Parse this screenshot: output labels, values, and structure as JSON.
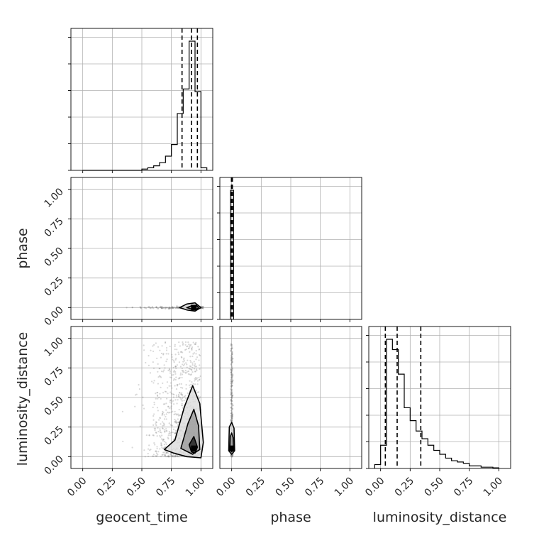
{
  "chart_data": {
    "type": "corner",
    "parameters": [
      "geocent_time",
      "phase",
      "luminosity_distance"
    ],
    "tick_labels": [
      "0.00",
      "0.25",
      "0.50",
      "0.75",
      "1.00"
    ],
    "ticks": [
      0,
      0.25,
      0.5,
      0.75,
      1.0
    ],
    "grid": true,
    "colors": {
      "line": "#000000",
      "grid": "#b0b0b0",
      "sample": "#7f7f7f",
      "fill_dark": "#1a1a1a",
      "fill_mid": "#9a9a9a",
      "fill_light": "#dcdcdc"
    },
    "diagonals": [
      {
        "parameter": "geocent_time",
        "xlim": [
          -0.1,
          1.1
        ],
        "bin_edges": [
          0.0,
          0.05,
          0.1,
          0.15,
          0.2,
          0.25,
          0.3,
          0.35,
          0.4,
          0.45,
          0.5,
          0.55,
          0.6,
          0.65,
          0.7,
          0.75,
          0.8,
          0.85,
          0.9,
          0.95,
          1.0,
          1.05
        ],
        "counts": [
          0,
          0,
          0,
          0,
          0,
          0,
          0,
          0,
          0,
          0,
          0.01,
          0.02,
          0.035,
          0.06,
          0.11,
          0.2,
          0.44,
          0.63,
          1.0,
          0.61,
          0.02
        ],
        "quantiles": [
          0.84,
          0.92,
          0.97
        ]
      },
      {
        "parameter": "phase",
        "xlim": [
          -0.1,
          1.1
        ],
        "bin_edges": [
          -0.01,
          0.003,
          0.016
        ],
        "counts": [
          1.0,
          1.0
        ],
        "quantiles": [
          -0.002,
          0.002,
          0.006
        ]
      },
      {
        "parameter": "luminosity_distance",
        "xlim": [
          -0.1,
          1.1
        ],
        "bin_edges": [
          -0.05,
          0.0,
          0.05,
          0.1,
          0.15,
          0.2,
          0.25,
          0.3,
          0.35,
          0.4,
          0.45,
          0.5,
          0.55,
          0.6,
          0.65,
          0.7,
          0.75,
          0.8,
          0.85,
          0.9,
          0.95,
          1.0
        ],
        "counts": [
          0.03,
          0.18,
          1.0,
          0.92,
          0.73,
          0.47,
          0.37,
          0.29,
          0.23,
          0.18,
          0.14,
          0.11,
          0.08,
          0.06,
          0.05,
          0.04,
          0.02,
          0.02,
          0.01,
          0.01,
          0.005
        ],
        "quantiles": [
          0.04,
          0.14,
          0.34
        ]
      }
    ],
    "pairs": [
      {
        "x": "geocent_time",
        "y": "phase",
        "xlim": [
          -0.1,
          1.1
        ],
        "ylim": [
          -0.1,
          1.1
        ],
        "samples": [
          [
            0.37,
            0.0
          ],
          [
            0.45,
            0.0
          ],
          [
            0.55,
            0.0
          ],
          [
            0.65,
            0.0
          ],
          [
            0.75,
            0.0
          ],
          [
            0.85,
            0.0
          ],
          [
            0.95,
            0.0
          ]
        ],
        "contours": [
          [
            [
              0.82,
              0.0
            ],
            [
              0.88,
              -0.02
            ],
            [
              0.95,
              -0.03
            ],
            [
              1.0,
              0.0
            ],
            [
              0.95,
              0.04
            ],
            [
              0.88,
              0.03
            ]
          ],
          [
            [
              0.88,
              0.0
            ],
            [
              0.93,
              -0.015
            ],
            [
              0.97,
              -0.01
            ],
            [
              0.98,
              0.0
            ],
            [
              0.96,
              0.02
            ],
            [
              0.92,
              0.015
            ]
          ]
        ],
        "peak": [
          0.94,
          0.0
        ]
      },
      {
        "x": "geocent_time",
        "y": "luminosity_distance",
        "xlim": [
          -0.1,
          1.1
        ],
        "ylim": [
          -0.1,
          1.1
        ],
        "contours": [
          [
            [
              0.69,
              0.06
            ],
            [
              0.78,
              0.14
            ],
            [
              0.86,
              0.42
            ],
            [
              0.93,
              0.6
            ],
            [
              0.99,
              0.45
            ],
            [
              1.02,
              0.12
            ],
            [
              1.0,
              -0.01
            ],
            [
              0.88,
              0.0
            ],
            [
              0.77,
              0.03
            ]
          ],
          [
            [
              0.83,
              0.07
            ],
            [
              0.89,
              0.28
            ],
            [
              0.94,
              0.4
            ],
            [
              0.98,
              0.26
            ],
            [
              0.99,
              0.06
            ],
            [
              0.93,
              0.02
            ]
          ],
          [
            [
              0.9,
              0.1
            ],
            [
              0.94,
              0.17
            ],
            [
              0.97,
              0.08
            ],
            [
              0.95,
              0.03
            ],
            [
              0.92,
              0.04
            ]
          ]
        ],
        "peak": [
          0.94,
          0.07
        ]
      },
      {
        "x": "phase",
        "y": "luminosity_distance",
        "xlim": [
          -0.1,
          1.1
        ],
        "ylim": [
          -0.1,
          1.1
        ],
        "contours": [
          [
            [
              -0.025,
              0.05
            ],
            [
              -0.02,
              0.25
            ],
            [
              0.0,
              0.29
            ],
            [
              0.02,
              0.24
            ],
            [
              0.025,
              0.05
            ],
            [
              0.0,
              0.02
            ]
          ],
          [
            [
              -0.015,
              0.06
            ],
            [
              -0.012,
              0.17
            ],
            [
              0.0,
              0.2
            ],
            [
              0.012,
              0.16
            ],
            [
              0.015,
              0.06
            ],
            [
              0.0,
              0.04
            ]
          ]
        ],
        "peak": [
          0.0,
          0.07
        ]
      }
    ]
  }
}
